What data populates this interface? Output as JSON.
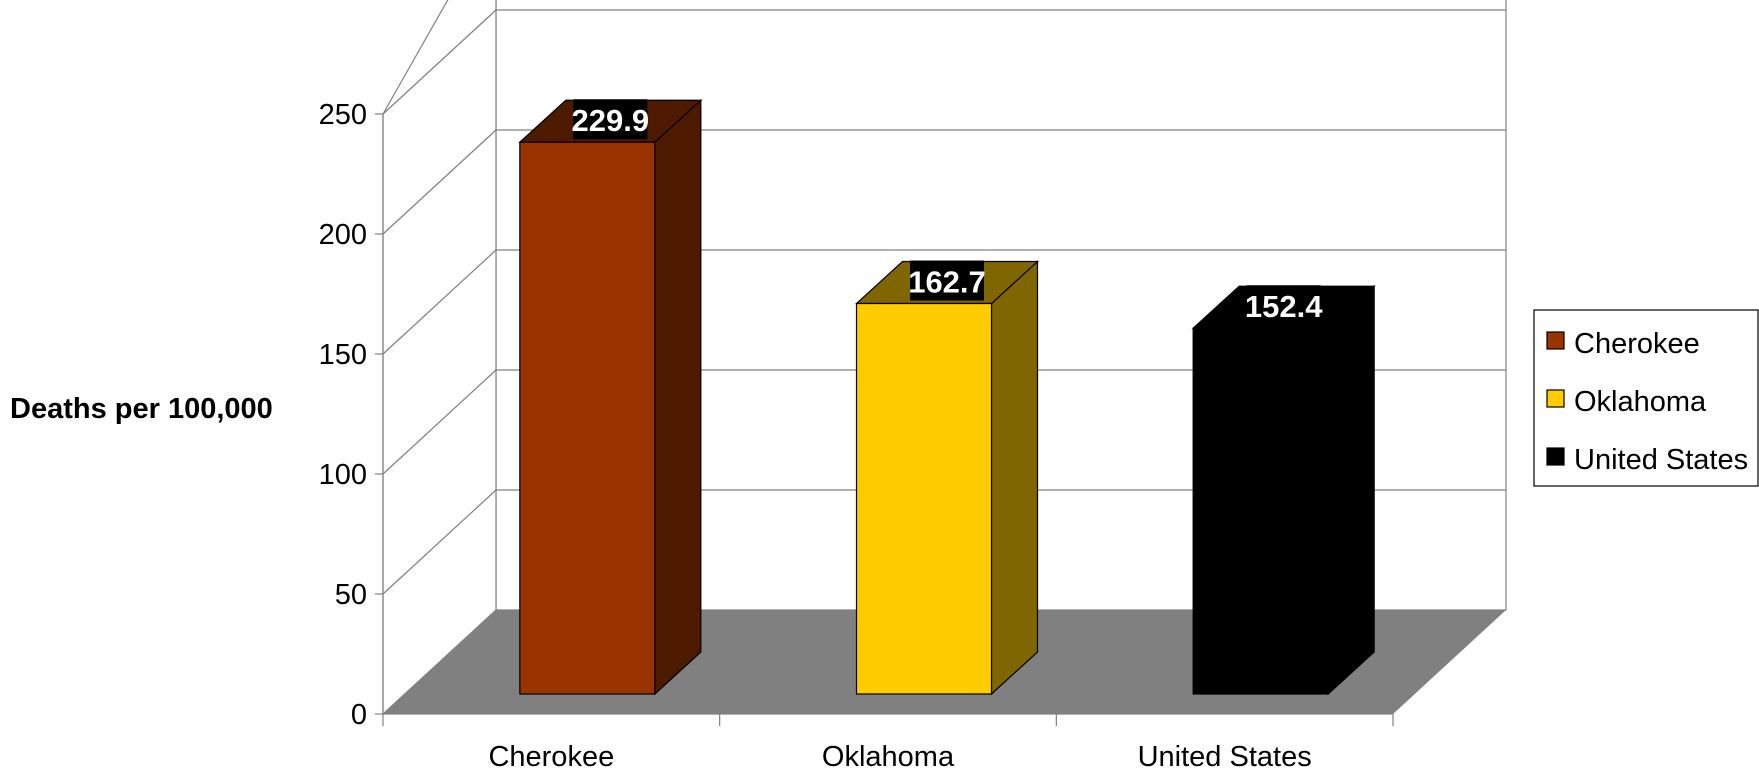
{
  "chart_data": {
    "type": "bar",
    "categories": [
      "Cherokee",
      "Oklahoma",
      "United States"
    ],
    "values": [
      229.9,
      162.7,
      152.4
    ],
    "data_labels": [
      "229.9",
      "162.7",
      "152.4"
    ],
    "title": "",
    "xlabel": "",
    "ylabel": "Deaths per 100,000",
    "ylim": [
      0,
      250
    ],
    "yticks": [
      0,
      50,
      100,
      150,
      200,
      250
    ],
    "ytick_labels": [
      "0",
      "50",
      "100",
      "150",
      "200",
      "250"
    ],
    "grid": true,
    "three_d": true,
    "legend_position": "right",
    "legend": [
      "Cherokee",
      "Oklahoma",
      "United States"
    ],
    "colors": {
      "front": [
        "#993300",
        "#ffcc00",
        "#000000"
      ],
      "side": [
        "#4d1a00",
        "#806600",
        "#000000"
      ],
      "floor": "#808080",
      "grid": "#808080"
    }
  }
}
